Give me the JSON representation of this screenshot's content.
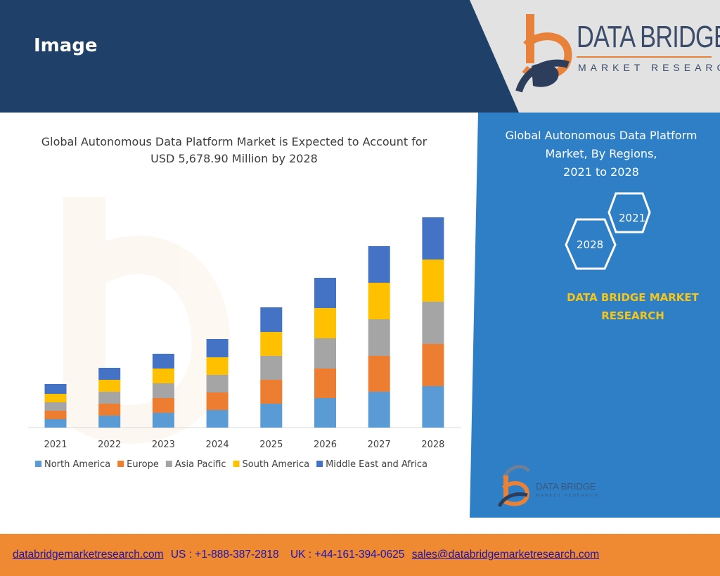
{
  "header": {
    "title": "Image"
  },
  "logo": {
    "name": "DATA BRIDGE",
    "tagline": "MARKET RESEARCH",
    "icon": "databridge-logo-icon"
  },
  "side_panel": {
    "title_line1": "Global Autonomous Data Platform",
    "title_line2": "Market, By Regions,",
    "title_line3": "2021 to 2028",
    "hex_start": "2021",
    "hex_end": "2028",
    "brand_line1": "DATA BRIDGE MARKET",
    "brand_line2": "RESEARCH",
    "mini_logo_name": "DATA BRIDGE",
    "mini_logo_tagline": "MARKET RESEARCH"
  },
  "footer": {
    "website": "databridgemarketresearch.com",
    "us_phone": "US : +1-888-387-2818",
    "uk_phone": "UK : +44-161-394-0625",
    "email": "sales@databridgemarketresearch.com"
  },
  "colors": {
    "header_bg": "#1f4068",
    "side_panel_bg": "#2f7fc6",
    "footer_bg": "#ef8a33",
    "north_america": "#5b9bd5",
    "europe": "#ed7d31",
    "asia_pacific": "#a5a5a5",
    "south_america": "#ffc000",
    "middle_east_africa": "#4472c4"
  },
  "chart_data": {
    "type": "bar",
    "stacked": true,
    "title_line1": "Global Autonomous Data Platform Market is Expected to Account for",
    "title_line2": "USD 5,678.90 Million by 2028",
    "categories": [
      "2021",
      "2022",
      "2023",
      "2024",
      "2025",
      "2026",
      "2027",
      "2028"
    ],
    "series": [
      {
        "name": "North America",
        "color": "#5b9bd5",
        "values": [
          12,
          17,
          21,
          25,
          34,
          42,
          51,
          59
        ]
      },
      {
        "name": "Europe",
        "color": "#ed7d31",
        "values": [
          12,
          17,
          21,
          25,
          34,
          42,
          51,
          60
        ]
      },
      {
        "name": "Asia Pacific",
        "color": "#a5a5a5",
        "values": [
          12,
          17,
          21,
          25,
          34,
          43,
          52,
          60
        ]
      },
      {
        "name": "South America",
        "color": "#ffc000",
        "values": [
          12,
          17,
          21,
          25,
          34,
          43,
          52,
          60
        ]
      },
      {
        "name": "Middle East and Africa",
        "color": "#4472c4",
        "values": [
          14,
          17,
          21,
          26,
          35,
          43,
          52,
          60
        ]
      }
    ],
    "legend": "bottom",
    "grid": false,
    "ylim": [
      0,
      300
    ]
  }
}
